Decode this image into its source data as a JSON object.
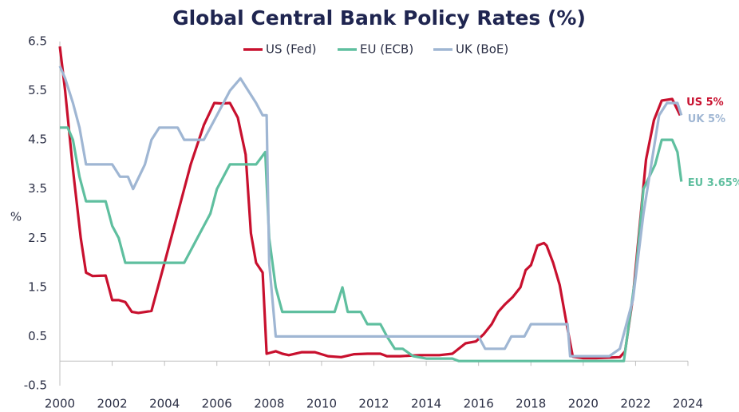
{
  "chart_data": {
    "type": "line",
    "title": "Global Central Bank Policy Rates (%)",
    "y_label": "%",
    "xlim": [
      2000,
      2024
    ],
    "xticks": [
      2000,
      2002,
      2004,
      2006,
      2008,
      2010,
      2012,
      2014,
      2016,
      2018,
      2020,
      2022,
      2024
    ],
    "ylim": [
      -0.5,
      6.5
    ],
    "yticks": [
      -0.5,
      0.5,
      1.5,
      2.5,
      3.5,
      4.5,
      5.5,
      6.5
    ],
    "grid": false,
    "legend": "top",
    "series": [
      {
        "name": "US (Fed)",
        "color": "#c8102e",
        "end_label": "US 5%",
        "x": [
          2000.0,
          2000.2,
          2000.5,
          2000.8,
          2001.0,
          2001.25,
          2001.75,
          2002.0,
          2002.25,
          2002.5,
          2002.75,
          2003.0,
          2003.5,
          2004.0,
          2004.5,
          2005.0,
          2005.5,
          2005.9,
          2006.2,
          2006.5,
          2006.8,
          2007.1,
          2007.3,
          2007.5,
          2007.75,
          2007.9,
          2008.25,
          2008.5,
          2008.75,
          2009.25,
          2009.75,
          2010.25,
          2010.75,
          2011.25,
          2011.75,
          2012.25,
          2012.5,
          2013.0,
          2013.75,
          2014.5,
          2015.0,
          2015.5,
          2015.9,
          2016.2,
          2016.5,
          2016.75,
          2017.0,
          2017.3,
          2017.6,
          2017.8,
          2018.0,
          2018.25,
          2018.5,
          2018.6,
          2018.85,
          2019.1,
          2019.4,
          2019.6,
          2020.0,
          2020.5,
          2021.0,
          2021.4,
          2021.6,
          2021.9,
          2022.2,
          2022.4,
          2022.7,
          2023.0,
          2023.4,
          2023.7
        ],
        "values": [
          6.4,
          5.5,
          3.9,
          2.5,
          1.8,
          1.73,
          1.74,
          1.24,
          1.24,
          1.2,
          1.0,
          0.98,
          1.02,
          2.0,
          3.0,
          4.0,
          4.8,
          5.25,
          5.24,
          5.25,
          4.95,
          4.2,
          2.6,
          2.0,
          1.8,
          0.15,
          0.2,
          0.15,
          0.12,
          0.18,
          0.18,
          0.1,
          0.08,
          0.14,
          0.15,
          0.15,
          0.1,
          0.1,
          0.12,
          0.12,
          0.15,
          0.36,
          0.4,
          0.55,
          0.75,
          1.0,
          1.15,
          1.3,
          1.5,
          1.85,
          1.95,
          2.35,
          2.4,
          2.35,
          2.0,
          1.55,
          0.65,
          0.09,
          0.06,
          0.06,
          0.07,
          0.08,
          0.2,
          1.3,
          3.0,
          4.1,
          4.9,
          5.3,
          5.33,
          5.0
        ]
      },
      {
        "name": "EU (ECB)",
        "color": "#5fbf9f",
        "end_label": "EU 3.65%",
        "x": [
          2000.0,
          2000.3,
          2000.5,
          2000.75,
          2001.0,
          2001.75,
          2002.0,
          2002.25,
          2002.5,
          2004.75,
          2005.25,
          2005.75,
          2006.0,
          2006.5,
          2007.5,
          2007.85,
          2008.0,
          2008.25,
          2008.5,
          2010.5,
          2010.8,
          2011.0,
          2011.5,
          2011.75,
          2012.25,
          2012.5,
          2012.8,
          2013.1,
          2013.5,
          2014.0,
          2015.0,
          2015.25,
          2021.55,
          2022.0,
          2022.3,
          2022.75,
          2023.0,
          2023.4,
          2023.6,
          2023.75
        ],
        "values": [
          4.75,
          4.75,
          4.5,
          3.75,
          3.25,
          3.25,
          2.75,
          2.5,
          2.0,
          2.0,
          2.5,
          3.0,
          3.5,
          4.0,
          4.0,
          4.25,
          2.5,
          1.5,
          1.0,
          1.0,
          1.5,
          1.0,
          1.0,
          0.75,
          0.75,
          0.5,
          0.25,
          0.25,
          0.1,
          0.05,
          0.05,
          0.0,
          0.0,
          1.75,
          3.5,
          4.0,
          4.5,
          4.5,
          4.25,
          3.65
        ]
      },
      {
        "name": "UK (BoE)",
        "color": "#9fb6d3",
        "end_label": "UK 5%",
        "x": [
          2000.0,
          2000.2,
          2000.5,
          2000.75,
          2001.0,
          2002.0,
          2002.3,
          2002.6,
          2002.8,
          2003.25,
          2003.5,
          2003.8,
          2004.5,
          2004.75,
          2005.5,
          2006.0,
          2006.5,
          2006.9,
          2007.2,
          2007.5,
          2007.75,
          2007.9,
          2008.0,
          2008.25,
          2016.0,
          2016.25,
          2017.0,
          2017.25,
          2017.75,
          2018.0,
          2019.4,
          2019.5,
          2021.0,
          2021.4,
          2021.9,
          2022.3,
          2022.6,
          2022.9,
          2023.2,
          2023.6,
          2023.75
        ],
        "values": [
          6.0,
          5.75,
          5.25,
          4.75,
          4.0,
          4.0,
          3.75,
          3.75,
          3.5,
          4.0,
          4.5,
          4.75,
          4.75,
          4.5,
          4.5,
          5.0,
          5.5,
          5.75,
          5.5,
          5.25,
          5.0,
          5.0,
          2.0,
          0.5,
          0.5,
          0.25,
          0.25,
          0.5,
          0.5,
          0.75,
          0.75,
          0.1,
          0.1,
          0.25,
          1.25,
          3.0,
          4.0,
          5.0,
          5.25,
          5.25,
          5.0
        ]
      }
    ]
  }
}
